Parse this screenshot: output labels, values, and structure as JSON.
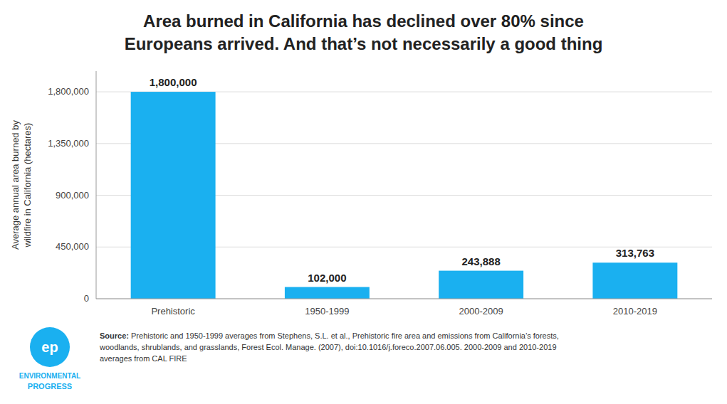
{
  "chart_data": {
    "type": "bar",
    "title": "Area burned in California has declined over 80% since\nEuropeans arrived. And that’s not necessarily a good thing",
    "ylabel": "Average annual area burned by\nwildfire in California (hectares)",
    "categories": [
      "Prehistoric",
      "1950-1999",
      "2000-2009",
      "2010-2019"
    ],
    "values": [
      1800000,
      102000,
      243888,
      313763
    ],
    "value_labels": [
      "1,800,000",
      "102,000",
      "243,888",
      "313,763"
    ],
    "data_labels": true,
    "color": "#1ab0f0",
    "ylim": [
      0,
      1980000
    ],
    "yticks": [
      0,
      {
        "value": 450000,
        "label": "450,000"
      },
      {
        "value": 900000,
        "label": "900,000"
      },
      {
        "value": 1350000,
        "label": "1,350,000"
      },
      {
        "value": 1800000,
        "label": "1,800,000"
      }
    ],
    "grid": true,
    "annotations": [
      "Source:",
      " Prehistoric and 1950-1999 averages from Stephens, S.L. et al., Prehistoric fire area and emissions from California’s forests,\nwoodlands, shrublands, and grasslands, Forest Ecol. Manage. (2007), doi:10.1016/j.foreco.2007.06.005. 2000-2009 and 2010-2019\naverages from CAL FIRE",
      "ep",
      "ENVIRONMENTAL",
      "PROGRESS"
    ]
  }
}
